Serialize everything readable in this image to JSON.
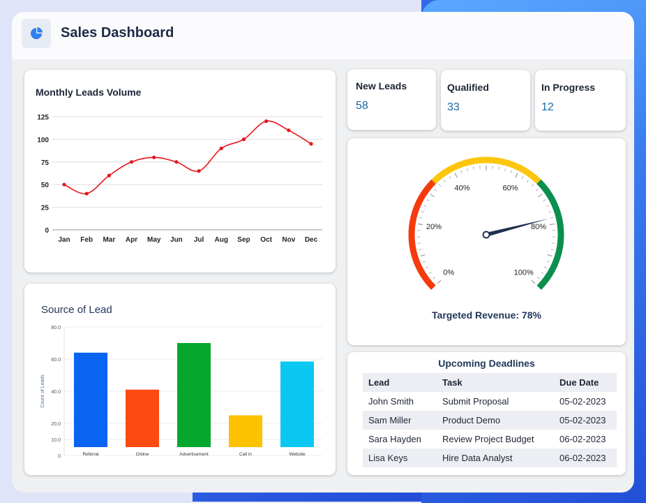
{
  "app": {
    "title": "Sales Dashboard",
    "logo_icon": "pie-chart-icon"
  },
  "leads_chart": {
    "title": "Monthly Leads Volume",
    "chart_data": {
      "type": "line",
      "x": [
        "Jan",
        "Feb",
        "Mar",
        "Apr",
        "May",
        "Jun",
        "Jul",
        "Aug",
        "Sep",
        "Oct",
        "Nov",
        "Dec"
      ],
      "y": [
        50,
        40,
        60,
        75,
        80,
        75,
        65,
        90,
        100,
        120,
        110,
        95
      ],
      "yticks": [
        0,
        25,
        50,
        75,
        100,
        125
      ],
      "ylim": [
        0,
        125
      ],
      "color": "#e8141b",
      "grid": true
    }
  },
  "source_chart": {
    "title": "Source of Lead",
    "chart_data": {
      "type": "bar",
      "categories": [
        "Referral",
        "Online",
        "Advertisement",
        "Call in",
        "Website"
      ],
      "values": [
        64,
        41,
        70,
        25,
        58.5
      ],
      "colors": [
        "#0a64f2",
        "#fb4a12",
        "#05a82c",
        "#fdc200",
        "#0ac8f2"
      ],
      "ylabel": "Count of Leads",
      "yticks": [
        "0",
        "10.0",
        "20.0",
        "40.0",
        "60.0",
        "80.0"
      ],
      "ylim": [
        0,
        80
      ],
      "grid": true
    }
  },
  "kpis": [
    {
      "label": "New Leads",
      "value": "58"
    },
    {
      "label": "Qualified",
      "value": "33"
    },
    {
      "label": "In Progress",
      "value": "12"
    }
  ],
  "gauge": {
    "tick_labels": [
      "0%",
      "20%",
      "40%",
      "60%",
      "80%",
      "100%"
    ],
    "value_percent": 78,
    "caption": "Targeted Revenue: 78%",
    "colors": {
      "low": "#f53a0c",
      "mid": "#fcc60c",
      "high": "#0b8f4f",
      "needle": "#1f3050"
    }
  },
  "deadlines": {
    "title": "Upcoming Deadlines",
    "columns": [
      "Lead",
      "Task",
      "Due Date"
    ],
    "rows": [
      [
        "John Smith",
        "Submit Proposal",
        "05-02-2023"
      ],
      [
        "Sam Miller",
        "Product Demo",
        "05-02-2023"
      ],
      [
        "Sara Hayden",
        "Review Project Budget",
        "06-02-2023"
      ],
      [
        "Lisa Keys",
        "Hire Data Analyst",
        "06-02-2023"
      ]
    ]
  }
}
